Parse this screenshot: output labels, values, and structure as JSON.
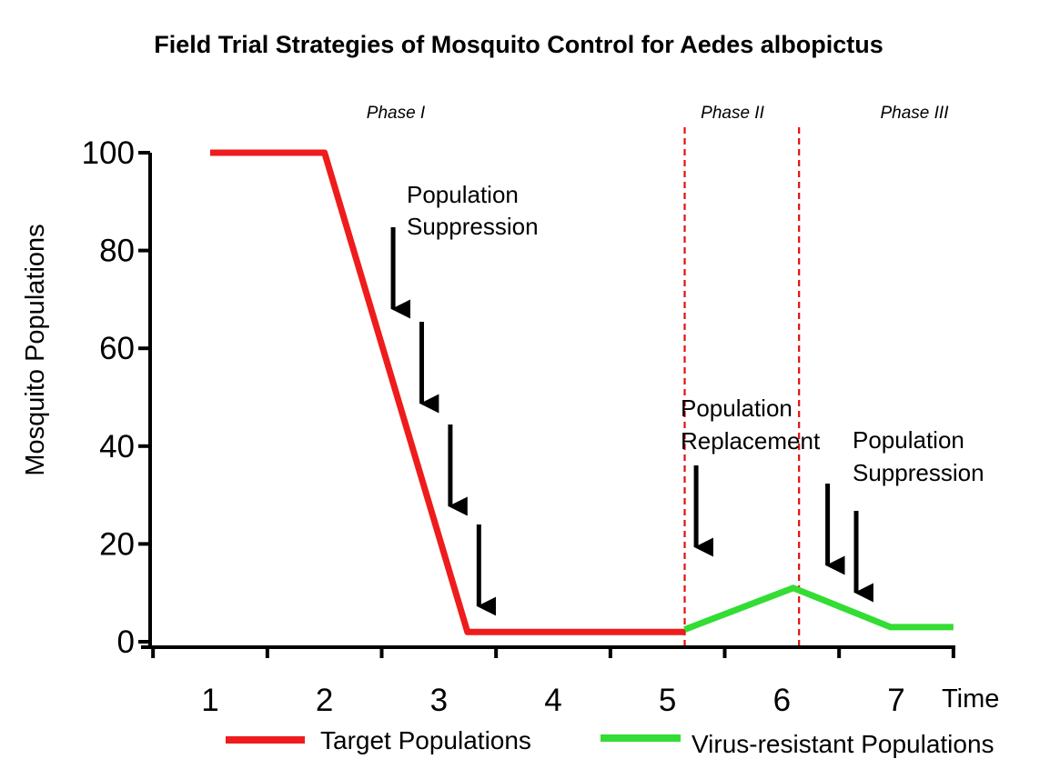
{
  "chart_data": {
    "type": "line",
    "title": "Field Trial Strategies of Mosquito Control for Aedes albopictus",
    "ylabel": "Mosquito Populations",
    "xlabel": "Time",
    "xlim": [
      0.5,
      7.5
    ],
    "ylim": [
      0,
      100
    ],
    "xticks": [
      "1",
      "2",
      "3",
      "4",
      "5",
      "6",
      "7"
    ],
    "yticks": [
      "0",
      "20",
      "40",
      "60",
      "80",
      "100"
    ],
    "series": [
      {
        "name": "Target Populations",
        "color": "#ee1c1c",
        "x": [
          1,
          2,
          3.25,
          5.15
        ],
        "y": [
          100,
          100,
          2,
          2
        ]
      },
      {
        "name": "Virus-resistant Populations",
        "color": "#33dd33",
        "x": [
          5.15,
          6.1,
          6.95,
          7.5
        ],
        "y": [
          2.5,
          11,
          3,
          3
        ]
      }
    ],
    "phase_dividers_x": [
      5.15,
      6.15
    ],
    "phases": [
      "Phase I",
      "Phase II",
      "Phase III"
    ],
    "annotations": [
      {
        "lines": [
          "Population",
          "Suppression"
        ],
        "arrows_x": [
          2.6,
          2.85,
          3.1,
          3.35
        ]
      },
      {
        "lines": [
          "Population",
          "Replacement"
        ],
        "arrows_x": [
          5.25
        ]
      },
      {
        "lines": [
          "Population",
          "Suppression"
        ],
        "arrows_x": [
          6.4,
          6.65
        ]
      }
    ],
    "legend_placement": "bottom"
  }
}
